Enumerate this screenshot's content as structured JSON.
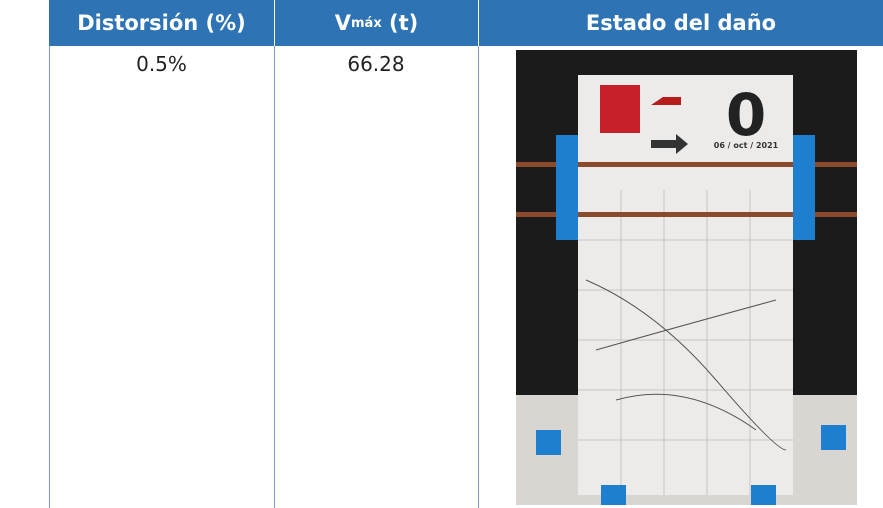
{
  "table": {
    "header": [
      "Distorsión (%)",
      {
        "main": "V",
        "sub": "máx",
        "suffix": "(t)"
      },
      "Estado del daño"
    ],
    "rows": [
      [
        "0.5%",
        "66.28"
      ]
    ]
  },
  "photo": {
    "number": "0",
    "date": "06 / oct / 2021"
  }
}
